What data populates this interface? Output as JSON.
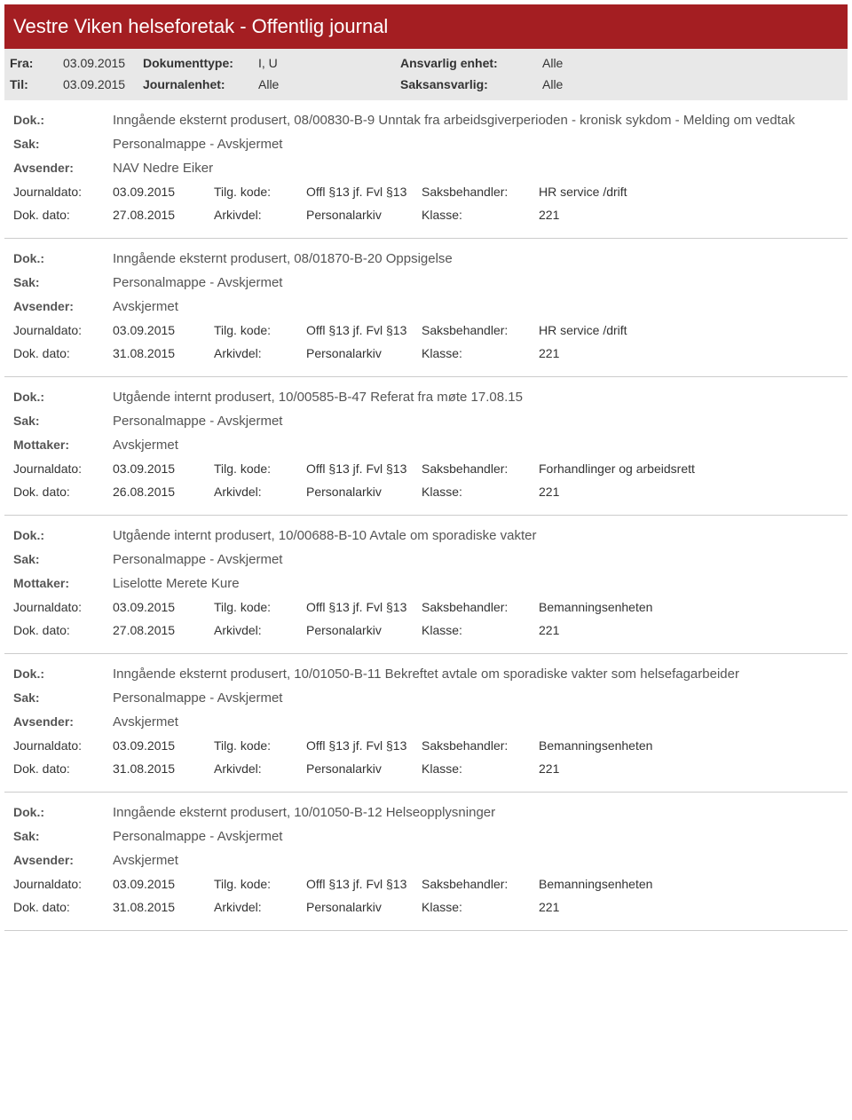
{
  "header": {
    "title": "Vestre Viken helseforetak - Offentlig journal"
  },
  "filters": {
    "fra_label": "Fra:",
    "fra_value": "03.09.2015",
    "til_label": "Til:",
    "til_value": "03.09.2015",
    "doktype_label": "Dokumenttype:",
    "doktype_value": "I, U",
    "journalenhet_label": "Journalenhet:",
    "journalenhet_value": "Alle",
    "ansvarlig_label": "Ansvarlig enhet:",
    "ansvarlig_value": "Alle",
    "saksansvarlig_label": "Saksansvarlig:",
    "saksansvarlig_value": "Alle"
  },
  "labels": {
    "dok": "Dok.:",
    "sak": "Sak:",
    "avsender": "Avsender:",
    "mottaker": "Mottaker:",
    "journaldato": "Journaldato:",
    "dokdato": "Dok. dato:",
    "tilgkode": "Tilg. kode:",
    "arkivdel": "Arkivdel:",
    "saksbehandler": "Saksbehandler:",
    "klasse": "Klasse:"
  },
  "entries": [
    {
      "dok": "Inngående eksternt produsert, 08/00830-B-9 Unntak fra arbeidsgiverperioden - kronisk sykdom - Melding om vedtak",
      "sak": "Personalmappe - Avskjermet",
      "party_label": "Avsender:",
      "party_value": "NAV Nedre Eiker",
      "journaldato": "03.09.2015",
      "tilgkode": "Offl §13 jf. Fvl §13",
      "saksbehandler": "HR service /drift",
      "dokdato": "27.08.2015",
      "arkivdel": "Personalarkiv",
      "klasse": "221"
    },
    {
      "dok": "Inngående eksternt produsert, 08/01870-B-20 Oppsigelse",
      "sak": "Personalmappe - Avskjermet",
      "party_label": "Avsender:",
      "party_value": "Avskjermet",
      "journaldato": "03.09.2015",
      "tilgkode": "Offl §13 jf. Fvl §13",
      "saksbehandler": "HR service /drift",
      "dokdato": "31.08.2015",
      "arkivdel": "Personalarkiv",
      "klasse": "221"
    },
    {
      "dok": "Utgående internt produsert, 10/00585-B-47 Referat fra møte 17.08.15",
      "sak": "Personalmappe - Avskjermet",
      "party_label": "Mottaker:",
      "party_value": "Avskjermet",
      "journaldato": "03.09.2015",
      "tilgkode": "Offl §13 jf. Fvl §13",
      "saksbehandler": "Forhandlinger og arbeidsrett",
      "dokdato": "26.08.2015",
      "arkivdel": "Personalarkiv",
      "klasse": "221"
    },
    {
      "dok": "Utgående internt produsert, 10/00688-B-10 Avtale om sporadiske vakter",
      "sak": "Personalmappe - Avskjermet",
      "party_label": "Mottaker:",
      "party_value": "Liselotte Merete Kure",
      "journaldato": "03.09.2015",
      "tilgkode": "Offl §13 jf. Fvl §13",
      "saksbehandler": "Bemanningsenheten",
      "dokdato": "27.08.2015",
      "arkivdel": "Personalarkiv",
      "klasse": "221"
    },
    {
      "dok": "Inngående eksternt produsert, 10/01050-B-11 Bekreftet avtale om sporadiske vakter som helsefagarbeider",
      "sak": "Personalmappe - Avskjermet",
      "party_label": "Avsender:",
      "party_value": "Avskjermet",
      "journaldato": "03.09.2015",
      "tilgkode": "Offl §13 jf. Fvl §13",
      "saksbehandler": "Bemanningsenheten",
      "dokdato": "31.08.2015",
      "arkivdel": "Personalarkiv",
      "klasse": "221"
    },
    {
      "dok": "Inngående eksternt produsert, 10/01050-B-12 Helseopplysninger",
      "sak": "Personalmappe - Avskjermet",
      "party_label": "Avsender:",
      "party_value": "Avskjermet",
      "journaldato": "03.09.2015",
      "tilgkode": "Offl §13 jf. Fvl §13",
      "saksbehandler": "Bemanningsenheten",
      "dokdato": "31.08.2015",
      "arkivdel": "Personalarkiv",
      "klasse": "221"
    }
  ]
}
